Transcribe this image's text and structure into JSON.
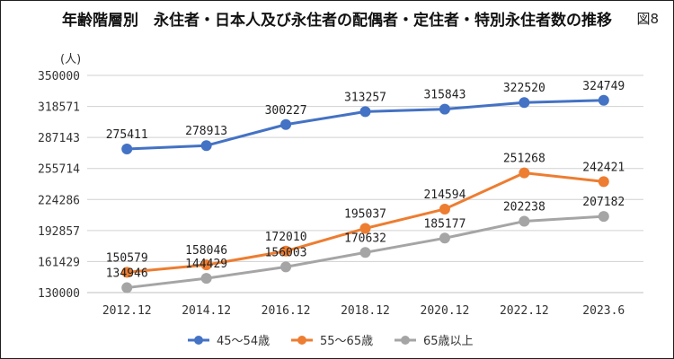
{
  "figure": {
    "title": "年齢階層別　永住者・日本人及び永住者の配偶者・定住者・特別永住者数の推移",
    "label": "図8",
    "y_unit": "(人)"
  },
  "chart_data": {
    "type": "line",
    "title": "年齢階層別　永住者・日本人及び永住者の配偶者・定住者・特別永住者数の推移",
    "xlabel": "",
    "ylabel": "(人)",
    "categories": [
      "2012.12",
      "2014.12",
      "2016.12",
      "2018.12",
      "2020.12",
      "2022.12",
      "2023.6"
    ],
    "ylim": [
      130000,
      350000
    ],
    "yticks": [
      130000,
      161429,
      192857,
      224286,
      255714,
      287143,
      318571,
      350000
    ],
    "grid": true,
    "legend_position": "bottom",
    "series": [
      {
        "name": "45～54歳",
        "color": "#4472c4",
        "values": [
          275411,
          278913,
          300227,
          313257,
          315843,
          322520,
          324749
        ]
      },
      {
        "name": "55～65歳",
        "color": "#ed7d31",
        "values": [
          150579,
          158046,
          172010,
          195037,
          214594,
          251268,
          242421
        ]
      },
      {
        "name": "65歳以上",
        "color": "#a5a5a5",
        "values": [
          134946,
          144429,
          156003,
          170632,
          185177,
          202238,
          207182
        ]
      }
    ]
  }
}
